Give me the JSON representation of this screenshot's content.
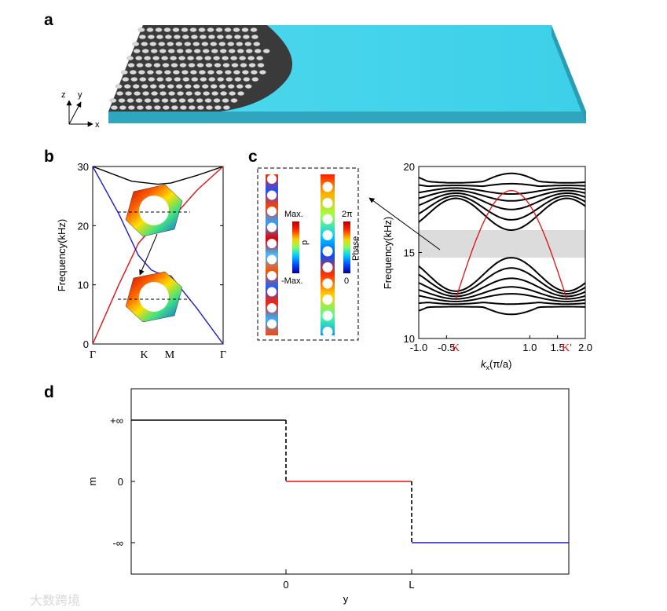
{
  "panels": {
    "a": {
      "label": "a",
      "axes": {
        "x": "x",
        "y": "y",
        "z": "z"
      }
    },
    "b": {
      "label": "b",
      "ylabel": "Frequency(kHz)",
      "yticks": [
        "0",
        "10",
        "20",
        "30"
      ],
      "xticks": [
        "Γ",
        "K",
        "M",
        "Γ"
      ]
    },
    "c": {
      "label": "c",
      "field_colorbar": {
        "top": "Max.",
        "bottom": "-Max.",
        "title": "p"
      },
      "phase_colorbar": {
        "top": "2π",
        "bottom": "0",
        "title": "Phase"
      },
      "ylabel": "Frequency(kHz)",
      "xlabel_main": "k",
      "xlabel_sub": "x",
      "xlabel_unit": "(π/a)",
      "yticks": [
        "10",
        "15",
        "20"
      ],
      "xticks": [
        "-1.0",
        "-0.5",
        "1.0",
        "1.5",
        "2.0"
      ],
      "valley_labels": [
        "K",
        "K'"
      ]
    },
    "d": {
      "label": "d",
      "ylabel": "m",
      "xlabel": "y",
      "yticks": [
        "+∞",
        "0",
        "-∞"
      ],
      "xticks": [
        "0",
        "L"
      ]
    }
  },
  "watermark": "大数跨境",
  "colors": {
    "red": "#e01010",
    "blue": "#1a1acc",
    "black": "#000000",
    "cyan": "#40d4ea",
    "gap": "#dcdcdc"
  },
  "chart_data": [
    {
      "type": "line",
      "panel": "b",
      "xlabel": "",
      "ylabel": "Frequency(kHz)",
      "categories": [
        "Γ",
        "K",
        "M",
        "Γ"
      ],
      "ylim": [
        0,
        30
      ],
      "series": [
        {
          "color": "#000000",
          "x": [
            0,
            0.3,
            0.5,
            0.6,
            0.8,
            1.0
          ],
          "y": [
            30,
            27.5,
            27,
            27.2,
            28.5,
            30
          ]
        },
        {
          "color": "#e01010",
          "x": [
            0,
            0.2,
            0.35,
            0.45,
            0.5,
            0.6,
            0.8,
            1.0
          ],
          "y": [
            0,
            10,
            17,
            19.5,
            20,
            21,
            26,
            30
          ]
        },
        {
          "color": "#1a1acc",
          "x": [
            0,
            0.2,
            0.35,
            0.45,
            0.5,
            0.6,
            0.8,
            1.0
          ],
          "y": [
            30,
            22,
            15,
            12.5,
            12,
            11.5,
            6,
            0
          ]
        }
      ]
    },
    {
      "type": "line",
      "panel": "c",
      "xlabel": "kx(π/a)",
      "ylabel": "Frequency(kHz)",
      "xlim": [
        -1.0,
        2.0
      ],
      "ylim": [
        10,
        20
      ],
      "gap": [
        14.7,
        16.3
      ],
      "edge_state": {
        "color": "#e01010",
        "x_range": [
          -0.333,
          1.667
        ],
        "y_edges": 12.3,
        "y_peak": 18.6
      },
      "upper_bulk_bottoms": [
        16.3,
        16.9,
        17.5,
        18.0,
        18.4,
        18.8,
        19.2
      ],
      "upper_bulk_y_at_K": 18.6,
      "lower_bulk_tops": [
        14.7,
        14.1,
        13.5,
        13.0,
        12.6,
        12.2,
        11.8
      ],
      "lower_bulk_y_at_K": 12.3
    },
    {
      "type": "line",
      "panel": "d",
      "xlabel": "y",
      "ylabel": "m",
      "categories": [
        "0",
        "L"
      ],
      "series": [
        {
          "color": "#000000",
          "segment": "y<0",
          "level": "+∞"
        },
        {
          "color": "#e01010",
          "segment": "0<y<L",
          "level": "0"
        },
        {
          "color": "#1a1acc",
          "segment": "y>L",
          "level": "-∞"
        }
      ]
    }
  ]
}
